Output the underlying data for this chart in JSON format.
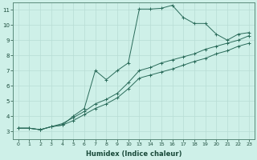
{
  "xlabel": "Humidex (Indice chaleur)",
  "background_color": "#cef0e8",
  "grid_color": "#b8ddd5",
  "line_color": "#2a6b5a",
  "xlim": [
    -0.5,
    21.5
  ],
  "ylim": [
    2.5,
    11.5
  ],
  "xtick_labels": [
    "0",
    "1",
    "2",
    "3",
    "4",
    "5",
    "6",
    "7",
    "8",
    "9",
    "10",
    "13",
    "14",
    "15",
    "16",
    "17",
    "18",
    "19",
    "20",
    "21",
    "22",
    "23"
  ],
  "yticks": [
    3,
    4,
    5,
    6,
    7,
    8,
    9,
    10,
    11
  ],
  "series": [
    {
      "x": [
        0,
        1,
        2,
        3,
        4,
        5,
        6,
        7,
        8,
        9,
        10,
        11,
        12,
        13,
        14,
        15,
        16,
        17,
        18,
        19,
        20,
        21
      ],
      "y": [
        3.2,
        3.2,
        3.1,
        3.3,
        3.4,
        4.0,
        4.5,
        7.0,
        6.4,
        7.0,
        7.5,
        11.05,
        11.05,
        11.1,
        11.3,
        10.5,
        10.1,
        10.1,
        9.4,
        9.0,
        9.4,
        9.5
      ],
      "marker": true
    },
    {
      "x": [
        0,
        1,
        2,
        3,
        4,
        5,
        6,
        7,
        8,
        9,
        10,
        11,
        12,
        13,
        14,
        15,
        16,
        17,
        18,
        19,
        20,
        21
      ],
      "y": [
        3.2,
        3.2,
        3.1,
        3.3,
        3.5,
        3.9,
        4.3,
        4.8,
        5.1,
        5.5,
        6.2,
        7.0,
        7.2,
        7.5,
        7.7,
        7.9,
        8.1,
        8.4,
        8.6,
        8.8,
        9.0,
        9.3
      ],
      "marker": true
    },
    {
      "x": [
        0,
        1,
        2,
        3,
        4,
        5,
        6,
        7,
        8,
        9,
        10,
        11,
        12,
        13,
        14,
        15,
        16,
        17,
        18,
        19,
        20,
        21
      ],
      "y": [
        3.2,
        3.2,
        3.1,
        3.3,
        3.4,
        3.7,
        4.1,
        4.5,
        4.8,
        5.2,
        5.8,
        6.5,
        6.7,
        6.9,
        7.1,
        7.35,
        7.6,
        7.8,
        8.1,
        8.3,
        8.6,
        8.8
      ],
      "marker": true
    }
  ]
}
